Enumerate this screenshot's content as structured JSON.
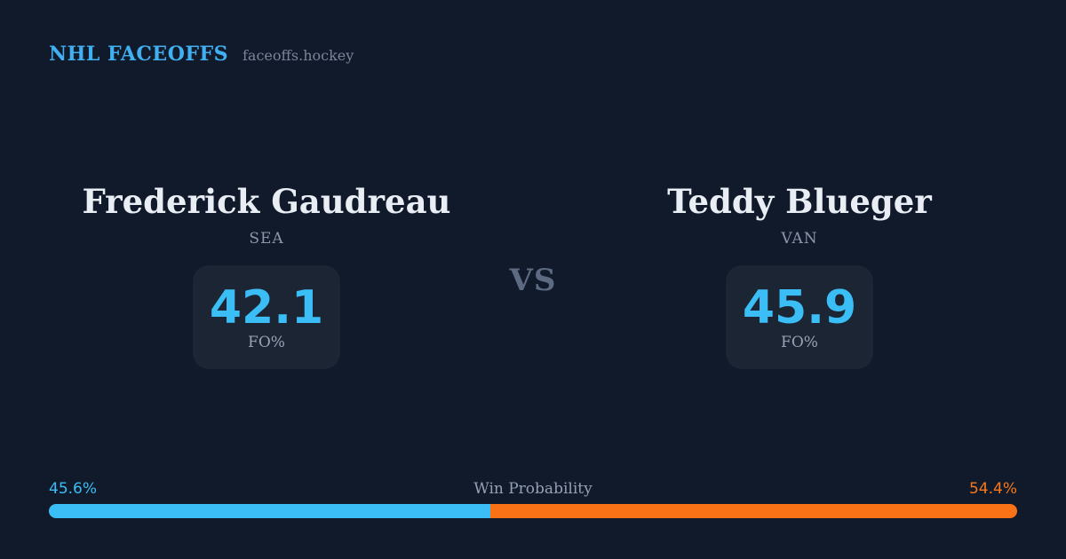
{
  "header": {
    "brand": "NHL FACEOFFS",
    "site": "faceoffs.hockey"
  },
  "matchup": {
    "vs_label": "VS",
    "left_player": {
      "name": "Frederick Gaudreau",
      "team": "SEA",
      "stat_value": "42.1",
      "stat_label": "FO%"
    },
    "right_player": {
      "name": "Teddy Blueger",
      "team": "VAN",
      "stat_value": "45.9",
      "stat_label": "FO%"
    }
  },
  "win_probability": {
    "title": "Win Probability",
    "left_pct_label": "45.6%",
    "right_pct_label": "54.4%",
    "left_value": 45.6,
    "right_value": 54.4
  },
  "colors": {
    "background": "#111a2b",
    "card_background": "#1c2534",
    "accent_blue": "#3bbdf6",
    "accent_orange": "#f97316",
    "text_primary": "#e9edf4",
    "text_muted": "#8b97ab"
  },
  "chart_data": {
    "type": "bar",
    "title": "Win Probability",
    "categories": [
      "Frederick Gaudreau (SEA)",
      "Teddy Blueger (VAN)"
    ],
    "values": [
      45.6,
      54.4
    ],
    "xlabel": "",
    "ylabel": "Win Probability %",
    "ylim": [
      0,
      100
    ]
  }
}
